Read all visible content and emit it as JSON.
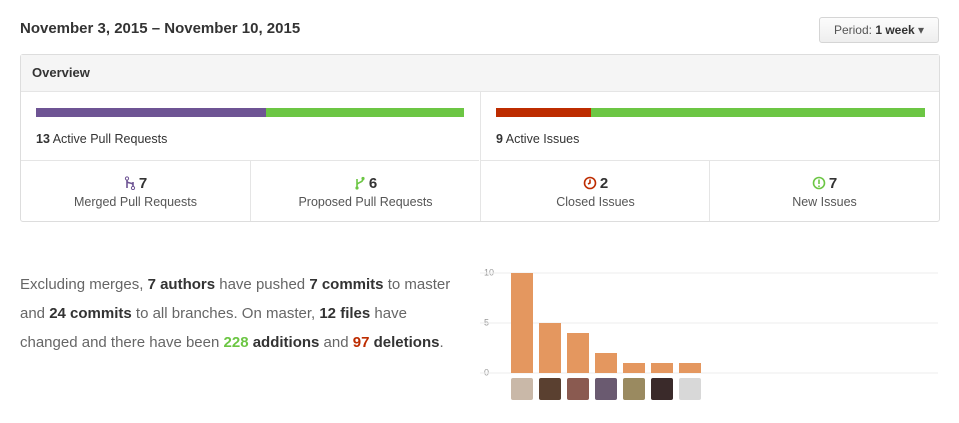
{
  "header": {
    "title": "November 3, 2015 – November 10, 2015",
    "period_label": "Period:",
    "period_value": "1 week"
  },
  "overview": {
    "title": "Overview",
    "pull_requests": {
      "count": "13",
      "label": "Active Pull Requests",
      "merged": 7,
      "proposed": 6,
      "merged_color": "#6e5494",
      "proposed_color": "#6cc644"
    },
    "issues": {
      "count": "9",
      "label": "Active Issues",
      "closed": 2,
      "new": 7,
      "closed_color": "#bd2c00",
      "new_color": "#6cc644"
    },
    "stats": [
      {
        "value": "7",
        "label": "Merged Pull Requests"
      },
      {
        "value": "6",
        "label": "Proposed Pull Requests"
      },
      {
        "value": "2",
        "label": "Closed Issues"
      },
      {
        "value": "7",
        "label": "New Issues"
      }
    ]
  },
  "summary": {
    "segments": [
      {
        "text": "Excluding merges, ",
        "style": "plain"
      },
      {
        "text": "7 authors",
        "style": "bold"
      },
      {
        "text": " have pushed ",
        "style": "plain"
      },
      {
        "text": "7 commits",
        "style": "bold"
      },
      {
        "text": " to master and ",
        "style": "plain"
      },
      {
        "text": "24 commits",
        "style": "bold"
      },
      {
        "text": " to all branches. On master, ",
        "style": "plain"
      },
      {
        "text": "12 files",
        "style": "bold"
      },
      {
        "text": " have changed and there have been ",
        "style": "plain"
      },
      {
        "text": "228",
        "style": "green"
      },
      {
        "text": " additions",
        "style": "bold"
      },
      {
        "text": " and ",
        "style": "plain"
      },
      {
        "text": "97",
        "style": "red"
      },
      {
        "text": " deletions",
        "style": "bold"
      },
      {
        "text": ".",
        "style": "plain"
      }
    ]
  },
  "chart_data": {
    "type": "bar",
    "categories": [
      null,
      null,
      null,
      null,
      null,
      null,
      null
    ],
    "values": [
      10,
      5,
      4,
      2,
      1,
      1,
      1
    ],
    "color": "#e4975f",
    "ylim": [
      0,
      10
    ],
    "yticks": [
      0,
      5,
      10
    ],
    "grid": true
  }
}
